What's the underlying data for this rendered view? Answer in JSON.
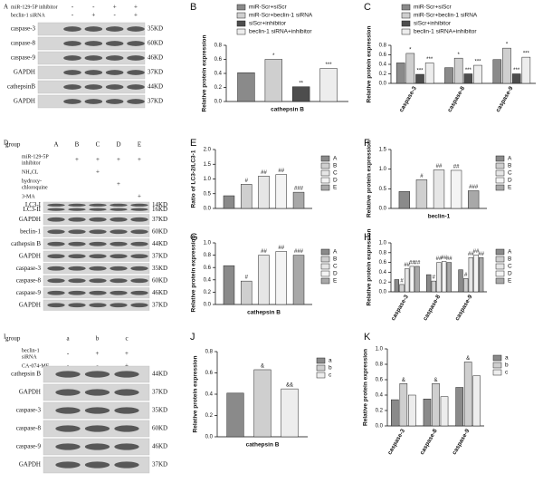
{
  "blots": [
    {
      "panel": "A",
      "conditions": [
        {
          "label": [
            "miR-129-5P inhibitor"
          ],
          "signs": [
            "-",
            "-",
            "+",
            "+"
          ]
        },
        {
          "label": [
            "beclin-1 siRNA"
          ],
          "signs": [
            "-",
            "+",
            "-",
            "+"
          ]
        }
      ],
      "rows": [
        {
          "label": "caspase-3",
          "kd": "35KD"
        },
        {
          "label": "caspase-8",
          "kd": "60KD"
        },
        {
          "label": "caspase-9",
          "kd": "46KD"
        },
        {
          "label": "GAPDH",
          "kd": "37KD"
        },
        {
          "label": "cathepsinB",
          "kd": "44KD"
        },
        {
          "label": "GAPDH",
          "kd": "37KD"
        }
      ]
    },
    {
      "panel": "D",
      "group_label": "group",
      "groups": [
        "A",
        "B",
        "C",
        "D",
        "E"
      ],
      "conditions": [
        {
          "label": [
            "miR-129-5P",
            "inhibitor"
          ],
          "signs": [
            null,
            "+",
            "+",
            "+",
            "+"
          ]
        },
        {
          "label": [
            "NH₄CL"
          ],
          "signs": [
            null,
            null,
            "+",
            null,
            null
          ]
        },
        {
          "label": [
            "hydroxy-",
            "chloroquine"
          ],
          "signs": [
            null,
            null,
            null,
            "+",
            null
          ]
        },
        {
          "label": [
            "3-MA"
          ],
          "signs": [
            null,
            null,
            null,
            null,
            "+"
          ]
        }
      ],
      "rows": [
        {
          "label": [
            "LC3-I",
            "LC3-II"
          ],
          "kd": [
            "14KD",
            "16KD"
          ]
        },
        {
          "label": "GAPDH",
          "kd": "37KD"
        },
        {
          "label": "beclin-1",
          "kd": "60KD"
        },
        {
          "label": "cathepsin B",
          "kd": "44KD"
        },
        {
          "label": "GAPDH",
          "kd": "37KD"
        },
        {
          "label": "caspase-3",
          "kd": "35KD"
        },
        {
          "label": "caspase-8",
          "kd": "60KD"
        },
        {
          "label": "caspase-9",
          "kd": "46KD"
        },
        {
          "label": "GAPDH",
          "kd": "37KD"
        }
      ]
    },
    {
      "panel": "I",
      "group_label": "group",
      "groups": [
        "a",
        "b",
        "c"
      ],
      "conditions": [
        {
          "label": [
            "beclin-1",
            "siRNA"
          ],
          "signs": [
            "-",
            "+",
            "+"
          ]
        },
        {
          "label": [
            "CA-074-ME"
          ],
          "signs": [
            "-",
            "-",
            "+"
          ]
        }
      ],
      "rows": [
        {
          "label": "cathepsin B",
          "kd": "44KD"
        },
        {
          "label": "GAPDH",
          "kd": "37KD"
        },
        {
          "label": "caspase-3",
          "kd": "35KD"
        },
        {
          "label": "caspase-8",
          "kd": "60KD"
        },
        {
          "label": "caspase-9",
          "kd": "46KD"
        },
        {
          "label": "GAPDH",
          "kd": "37KD"
        }
      ]
    }
  ],
  "chart_data": [
    {
      "panel": "B",
      "type": "bar",
      "ylabel": "Relative protein expression",
      "legend": "top",
      "categories": [
        "cathepsin B"
      ],
      "ylim": [
        0,
        0.8
      ],
      "yticks": [
        {
          "value": 0,
          "label": "0.0"
        },
        0.2,
        0.4,
        0.6,
        0.8
      ],
      "series": [
        {
          "name": "miR-Scr+siScr",
          "color": "#8a8a8a",
          "values": [
            0.41
          ],
          "annotations": [
            null
          ]
        },
        {
          "name": "miR-Scr+beclin-1 siRNA",
          "color": "#cfcfcf",
          "values": [
            0.6
          ],
          "annotations": [
            "*"
          ]
        },
        {
          "name": "siScr+inhibitor",
          "color": "#4d4d4d",
          "values": [
            0.21
          ],
          "annotations": [
            "**"
          ]
        },
        {
          "name": "beclin-1 siRNA+inhibitor",
          "color": "#ededed",
          "values": [
            0.47
          ],
          "annotations": [
            "***"
          ]
        }
      ]
    },
    {
      "panel": "C",
      "type": "bar",
      "ylabel": "Relative protein expression",
      "legend": "top",
      "categories": [
        "caspase-3",
        "caspase-8",
        "caspase-9"
      ],
      "ylim": [
        0,
        0.8
      ],
      "yticks": [
        {
          "value": 0,
          "label": "0.0"
        },
        0.2,
        0.4,
        0.6,
        0.8
      ],
      "series": [
        {
          "name": "miR-Scr+siScr",
          "color": "#8a8a8a",
          "values": [
            0.43,
            0.33,
            0.5
          ],
          "annotations": [
            null,
            null,
            null
          ]
        },
        {
          "name": "miR-Scr+beclin-1 siRNA",
          "color": "#cfcfcf",
          "values": [
            0.63,
            0.53,
            0.74
          ],
          "annotations": [
            "*",
            "*",
            "*"
          ]
        },
        {
          "name": "siScr+inhibitor",
          "color": "#4d4d4d",
          "values": [
            0.19,
            0.2,
            0.2
          ],
          "annotations": [
            "***",
            "***",
            "***"
          ]
        },
        {
          "name": "beclin-1 siRNA+inhibitor",
          "color": "#ededed",
          "values": [
            0.43,
            0.38,
            0.55
          ],
          "annotations": [
            "***",
            "***",
            "***"
          ]
        }
      ]
    },
    {
      "panel": "E",
      "type": "bar",
      "ylabel": "Ratio of LC3-2/LC3-1",
      "legend": "right",
      "categories": [
        null
      ],
      "ylim": [
        0,
        2
      ],
      "yticks": [
        {
          "value": 0,
          "label": "0.0"
        },
        0.5,
        {
          "value": 1,
          "label": "1.0"
        },
        1.5,
        {
          "value": 2,
          "label": "2.0"
        }
      ],
      "series": [
        {
          "name": "A",
          "color": "#8a8a8a",
          "values": [
            0.43
          ],
          "annotations": [
            null
          ]
        },
        {
          "name": "B",
          "color": "#cfcfcf",
          "values": [
            0.82
          ],
          "annotations": [
            "#"
          ]
        },
        {
          "name": "C",
          "color": "#e6e6e6",
          "values": [
            1.1
          ],
          "annotations": [
            "##"
          ]
        },
        {
          "name": "D",
          "color": "#f4f4f4",
          "values": [
            1.15
          ],
          "annotations": [
            "##"
          ]
        },
        {
          "name": "E",
          "color": "#a8a8a8",
          "values": [
            0.55
          ],
          "annotations": [
            "###"
          ]
        }
      ]
    },
    {
      "panel": "F",
      "type": "bar",
      "ylabel": "Relative protein expression",
      "legend": "right",
      "categories": [
        "beclin-1"
      ],
      "ylim": [
        0,
        1.5
      ],
      "yticks": [
        {
          "value": 0,
          "label": "0.0"
        },
        0.5,
        {
          "value": 1,
          "label": "1.0"
        },
        1.5
      ],
      "series": [
        {
          "name": "A",
          "color": "#8a8a8a",
          "values": [
            0.43
          ],
          "annotations": [
            null
          ]
        },
        {
          "name": "B",
          "color": "#cfcfcf",
          "values": [
            0.73
          ],
          "annotations": [
            "#"
          ]
        },
        {
          "name": "C",
          "color": "#e6e6e6",
          "values": [
            0.98
          ],
          "annotations": [
            "##"
          ]
        },
        {
          "name": "D",
          "color": "#f4f4f4",
          "values": [
            0.97
          ],
          "annotations": [
            "##"
          ]
        },
        {
          "name": "E",
          "color": "#a8a8a8",
          "values": [
            0.45
          ],
          "annotations": [
            "###"
          ]
        }
      ]
    },
    {
      "panel": "G",
      "type": "bar",
      "ylabel": "Relative protein expression",
      "legend": "right",
      "categories": [
        "cathepsin B"
      ],
      "ylim": [
        0,
        1
      ],
      "yticks": [
        {
          "value": 0,
          "label": "0.0"
        },
        0.2,
        0.4,
        0.6,
        0.8,
        {
          "value": 1,
          "label": "1.0"
        }
      ],
      "series": [
        {
          "name": "A",
          "color": "#8a8a8a",
          "values": [
            0.63
          ],
          "annotations": [
            null
          ]
        },
        {
          "name": "B",
          "color": "#cfcfcf",
          "values": [
            0.38
          ],
          "annotations": [
            "#"
          ]
        },
        {
          "name": "C",
          "color": "#e6e6e6",
          "values": [
            0.8
          ],
          "annotations": [
            "##"
          ]
        },
        {
          "name": "D",
          "color": "#f4f4f4",
          "values": [
            0.86
          ],
          "annotations": [
            "##"
          ]
        },
        {
          "name": "E",
          "color": "#a8a8a8",
          "values": [
            0.8
          ],
          "annotations": [
            "###"
          ]
        }
      ]
    },
    {
      "panel": "H",
      "type": "bar",
      "ylabel": "Relative protein expression",
      "legend": "right",
      "categories": [
        "caspase-3",
        "caspase-8",
        "caspase-9"
      ],
      "ylim": [
        0,
        1
      ],
      "yticks": [
        {
          "value": 0,
          "label": "0.0"
        },
        0.2,
        0.4,
        0.6,
        0.8,
        {
          "value": 1,
          "label": "1.0"
        }
      ],
      "series": [
        {
          "name": "A",
          "color": "#8a8a8a",
          "values": [
            0.25,
            0.35,
            0.45
          ],
          "annotations": [
            null,
            null,
            null
          ]
        },
        {
          "name": "B",
          "color": "#cfcfcf",
          "values": [
            0.15,
            0.22,
            0.27
          ],
          "annotations": [
            "#",
            "#",
            "#"
          ]
        },
        {
          "name": "C",
          "color": "#e6e6e6",
          "values": [
            0.47,
            0.6,
            0.7
          ],
          "annotations": [
            "##",
            "##",
            "##"
          ]
        },
        {
          "name": "D",
          "color": "#f4f4f4",
          "values": [
            0.52,
            0.62,
            0.75
          ],
          "annotations": [
            "##",
            "##",
            "##"
          ]
        },
        {
          "name": "E",
          "color": "#a8a8a8",
          "values": [
            0.52,
            0.6,
            0.7
          ],
          "annotations": [
            "##",
            "##",
            "##"
          ]
        }
      ]
    },
    {
      "panel": "J",
      "type": "bar",
      "ylabel": "Relative protein expression",
      "legend": "right",
      "categories": [
        "cathepsin B"
      ],
      "ylim": [
        0,
        0.8
      ],
      "yticks": [
        {
          "value": 0,
          "label": "0.0"
        },
        0.2,
        0.4,
        0.6,
        0.8
      ],
      "series": [
        {
          "name": "a",
          "color": "#8a8a8a",
          "values": [
            0.41
          ],
          "annotations": [
            null
          ]
        },
        {
          "name": "b",
          "color": "#cfcfcf",
          "values": [
            0.63
          ],
          "annotations": [
            "&"
          ]
        },
        {
          "name": "c",
          "color": "#ededed",
          "values": [
            0.45
          ],
          "annotations": [
            "&&"
          ]
        }
      ]
    },
    {
      "panel": "K",
      "type": "bar",
      "ylabel": "Relative protein expression",
      "legend": "right",
      "categories": [
        "caspase-3",
        "caspase-8",
        "caspase-9"
      ],
      "ylim": [
        0,
        1
      ],
      "yticks": [
        {
          "value": 0,
          "label": "0.0"
        },
        0.2,
        0.4,
        0.6,
        0.8,
        {
          "value": 1,
          "label": "1.0"
        }
      ],
      "series": [
        {
          "name": "a",
          "color": "#8a8a8a",
          "values": [
            0.34,
            0.35,
            0.5
          ],
          "annotations": [
            null,
            null,
            null
          ]
        },
        {
          "name": "b",
          "color": "#cfcfcf",
          "values": [
            0.55,
            0.55,
            0.83
          ],
          "annotations": [
            "&",
            "&",
            "&"
          ]
        },
        {
          "name": "c",
          "color": "#ededed",
          "values": [
            0.4,
            0.38,
            0.65
          ],
          "annotations": [
            null,
            null,
            null
          ]
        }
      ]
    }
  ]
}
